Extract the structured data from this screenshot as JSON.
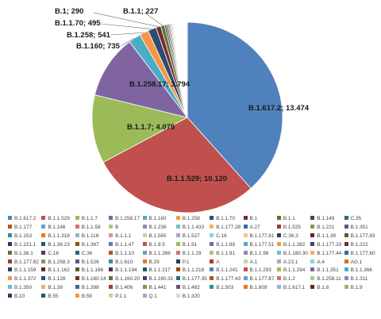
{
  "chart_data": {
    "type": "pie",
    "title": "",
    "slices": [
      {
        "name": "B.1.617.2",
        "value": 13474,
        "label": "B.1.617.2; 13.474",
        "color": "#4f81bd"
      },
      {
        "name": "B.1.1.529",
        "value": 10120,
        "label": "B.1.1.529; 10.120",
        "color": "#c0504d"
      },
      {
        "name": "B.1.1.7",
        "value": 4075,
        "label": "B.1.1.7; 4.075",
        "color": "#9bbb59"
      },
      {
        "name": "B.1.258.17",
        "value": 3794,
        "label": "B.1.258.17; 3.794",
        "color": "#8064a2"
      },
      {
        "name": "B.1.160",
        "value": 735,
        "label": "B.1.160; 735",
        "color": "#4bacc6"
      },
      {
        "name": "B.1.258",
        "value": 541,
        "label": "B.1.258; 541",
        "color": "#f79646"
      },
      {
        "name": "B.1.1.70",
        "value": 495,
        "label": "B.1.1.70; 495",
        "color": "#2c4d75"
      },
      {
        "name": "B.1",
        "value": 290,
        "label": "B.1; 290",
        "color": "#772c2a"
      },
      {
        "name": "B.1.1",
        "value": 227,
        "label": "B.1.1; 227",
        "color": "#5f7530"
      },
      {
        "name": "B.1.149",
        "value": 110,
        "color": "#4d3b62"
      },
      {
        "name": "C.35",
        "value": 95,
        "color": "#276a7c"
      },
      {
        "name": "B.1.177",
        "value": 85,
        "color": "#b65708"
      },
      {
        "name": "B.1.146",
        "value": 70,
        "color": "#729aca"
      },
      {
        "name": "B.1.1.58",
        "value": 60,
        "color": "#cd7371"
      },
      {
        "name": "B",
        "value": 55,
        "color": "#afc97a"
      },
      {
        "name": "B.1.236",
        "value": 50,
        "color": "#9983b5"
      },
      {
        "name": "B.1.1.433",
        "value": 45,
        "color": "#6fbdd1"
      },
      {
        "name": "B.1.177.28",
        "value": 40,
        "color": "#f9ab6b"
      },
      {
        "name": "A.27",
        "value": 38,
        "color": "#3a679c"
      },
      {
        "name": "B.1.525",
        "value": 35,
        "color": "#9e3b38"
      },
      {
        "name": "B.1.221",
        "value": 32,
        "color": "#7e9c40"
      },
      {
        "name": "B.1.351",
        "value": 30,
        "color": "#664f83"
      },
      {
        "name": "B.1.153",
        "value": 28,
        "color": "#358ca3"
      },
      {
        "name": "B.1.1.318",
        "value": 26,
        "color": "#f3740b"
      },
      {
        "name": "B.1.118",
        "value": 24,
        "color": "#95b3d7"
      },
      {
        "name": "B.1.1.1",
        "value": 22,
        "color": "#d99694"
      },
      {
        "name": "B.1.565",
        "value": 21,
        "color": "#c3d69b"
      },
      {
        "name": "B.1.527",
        "value": 20,
        "color": "#b2a2c7"
      },
      {
        "name": "C.16",
        "value": 19,
        "color": "#93cddd"
      },
      {
        "name": "B.1.177.81",
        "value": 18,
        "color": "#fac090"
      },
      {
        "name": "C.36.3",
        "value": 17,
        "color": "#254061"
      },
      {
        "name": "B.1.1.39",
        "value": 16,
        "color": "#632523"
      },
      {
        "name": "B.1.177.83",
        "value": 16,
        "color": "#4f6228"
      },
      {
        "name": "B.1.221.1",
        "value": 15,
        "color": "#403152"
      },
      {
        "name": "B.1.36.23",
        "value": 15,
        "color": "#215968"
      },
      {
        "name": "B.1.367",
        "value": 14,
        "color": "#984807"
      },
      {
        "name": "B.1.1.47",
        "value": 14,
        "color": "#4f81bd"
      },
      {
        "name": "B.1.9.5",
        "value": 13,
        "color": "#c0504d"
      },
      {
        "name": "B.1.91",
        "value": 13,
        "color": "#9bbb59"
      },
      {
        "name": "B.1.1.89",
        "value": 12,
        "color": "#8064a2"
      },
      {
        "name": "B.1.177.51",
        "value": 12,
        "color": "#4bacc6"
      },
      {
        "name": "B.1.1.282",
        "value": 11,
        "color": "#f79646"
      },
      {
        "name": "B.1.177.33",
        "value": 11,
        "color": "#2c4d75"
      },
      {
        "name": "B.1.222",
        "value": 10,
        "color": "#772c2a"
      },
      {
        "name": "B.1.36.1",
        "value": 10,
        "color": "#5f7530"
      },
      {
        "name": "C.18",
        "value": 10,
        "color": "#4d3b62"
      },
      {
        "name": "C.36",
        "value": 9,
        "color": "#276a7c"
      },
      {
        "name": "B.1.1.10",
        "value": 9,
        "color": "#b65708"
      },
      {
        "name": "B.1.1.266",
        "value": 9,
        "color": "#729aca"
      },
      {
        "name": "B.1.1.29",
        "value": 8,
        "color": "#cd7371"
      },
      {
        "name": "B.1.1.91",
        "value": 8,
        "color": "#afc97a"
      },
      {
        "name": "B.1.1.98",
        "value": 8,
        "color": "#9983b5"
      },
      {
        "name": "B.1.160.30",
        "value": 7,
        "color": "#6fbdd1"
      },
      {
        "name": "B.1.177.44",
        "value": 7,
        "color": "#f9ab6b"
      },
      {
        "name": "B.1.177.60",
        "value": 7,
        "color": "#3a679c"
      },
      {
        "name": "B.1.177.82",
        "value": 7,
        "color": "#9e3b38"
      },
      {
        "name": "B.1.258.3",
        "value": 6,
        "color": "#7e9c40"
      },
      {
        "name": "B.1.526",
        "value": 6,
        "color": "#664f83"
      },
      {
        "name": "B.1.610",
        "value": 6,
        "color": "#358ca3"
      },
      {
        "name": "B.29",
        "value": 6,
        "color": "#f3740b"
      },
      {
        "name": "P.1",
        "value": 6,
        "color": "#1f3a5c"
      },
      {
        "name": "A",
        "value": 5,
        "color": "#a83b35"
      },
      {
        "name": "A.1",
        "value": 5,
        "color": "#c3d69b"
      },
      {
        "name": "A.23.1",
        "value": 5,
        "color": "#b2a2c7"
      },
      {
        "name": "A.4",
        "value": 5,
        "color": "#93cddd"
      },
      {
        "name": "AG.1",
        "value": 5,
        "color": "#e36c09"
      },
      {
        "name": "B.1.1.159",
        "value": 5,
        "color": "#254061"
      },
      {
        "name": "B.1.1.162",
        "value": 4,
        "color": "#632523"
      },
      {
        "name": "B.1.1.166",
        "value": 4,
        "color": "#4f6228"
      },
      {
        "name": "B.1.1.194",
        "value": 4,
        "color": "#403152"
      },
      {
        "name": "B.1.1.217",
        "value": 4,
        "color": "#215968"
      },
      {
        "name": "B.1.1.218",
        "value": 4,
        "color": "#984807"
      },
      {
        "name": "B.1.1.241",
        "value": 4,
        "color": "#4f81bd"
      },
      {
        "name": "B.1.1.293",
        "value": 3,
        "color": "#c0504d"
      },
      {
        "name": "B.1.1.294",
        "value": 3,
        "color": "#9bbb59"
      },
      {
        "name": "B.1.1.351",
        "value": 3,
        "color": "#8064a2"
      },
      {
        "name": "B.1.1.366",
        "value": 3,
        "color": "#4bacc6"
      },
      {
        "name": "B.1.1.372",
        "value": 3,
        "color": "#f79646"
      },
      {
        "name": "B.1.128",
        "value": 3,
        "color": "#2c4d75"
      },
      {
        "name": "B.1.160.14",
        "value": 3,
        "color": "#772c2a"
      },
      {
        "name": "B.1.160.20",
        "value": 3,
        "color": "#5f7530"
      },
      {
        "name": "B.1.160.31",
        "value": 3,
        "color": "#4d3b62"
      },
      {
        "name": "B.1.177.35",
        "value": 2,
        "color": "#276a7c"
      },
      {
        "name": "B.1.177.43",
        "value": 2,
        "color": "#b65708"
      },
      {
        "name": "B.1.177.87",
        "value": 2,
        "color": "#729aca"
      },
      {
        "name": "B.1.2",
        "value": 2,
        "color": "#cd7371"
      },
      {
        "name": "B.1.258.11",
        "value": 2,
        "color": "#afc97a"
      },
      {
        "name": "B.1.311",
        "value": 2,
        "color": "#9983b5"
      },
      {
        "name": "B.1.350",
        "value": 2,
        "color": "#6fbdd1"
      },
      {
        "name": "B.1.39",
        "value": 2,
        "color": "#f9ab6b"
      },
      {
        "name": "B.1.398",
        "value": 2,
        "color": "#3a679c"
      },
      {
        "name": "B.1.406",
        "value": 2,
        "color": "#9e3b38"
      },
      {
        "name": "B.1.441",
        "value": 2,
        "color": "#7e9c40"
      },
      {
        "name": "B.1.482",
        "value": 2,
        "color": "#664f83"
      },
      {
        "name": "B.1.503",
        "value": 2,
        "color": "#358ca3"
      },
      {
        "name": "B.1.609",
        "value": 1,
        "color": "#f3740b"
      },
      {
        "name": "B.1.617.1",
        "value": 1,
        "color": "#95b3d7"
      },
      {
        "name": "B.1.8",
        "value": 1,
        "color": "#632523"
      },
      {
        "name": "B.1.9",
        "value": 1,
        "color": "#9bbb59"
      },
      {
        "name": "B.10",
        "value": 1,
        "color": "#403152"
      },
      {
        "name": "B.55",
        "value": 1,
        "color": "#215968"
      },
      {
        "name": "B.59",
        "value": 1,
        "color": "#f79646"
      },
      {
        "name": "P.1.1",
        "value": 1,
        "color": "#c3d69b"
      },
      {
        "name": "Q.1",
        "value": 1,
        "color": "#b2a2c7"
      },
      {
        "name": "B.1.320",
        "value": 1,
        "color": "#d9d9d9"
      }
    ],
    "legend_position": "bottom",
    "legend_columns": 11
  }
}
